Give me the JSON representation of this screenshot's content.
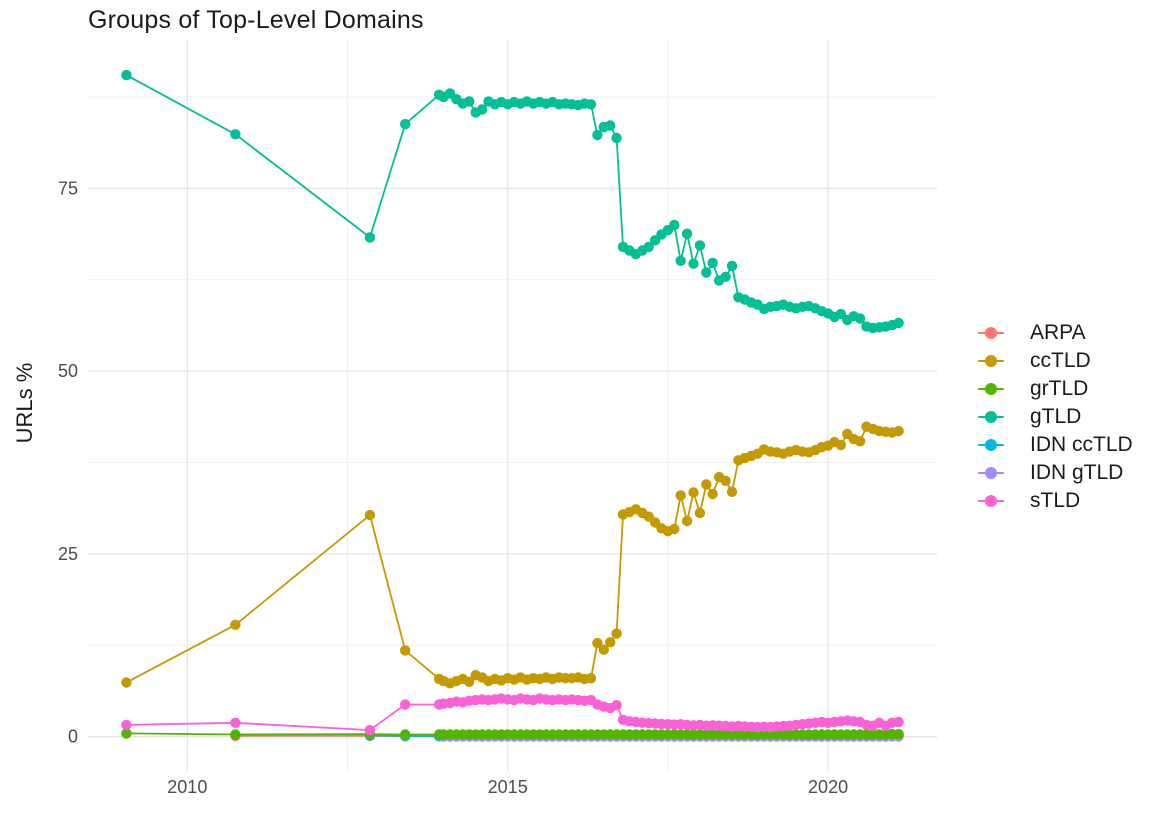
{
  "title": "Groups of Top-Level Domains",
  "axes": {
    "y_title": "URLs %",
    "x_ticks": [
      2010,
      2015,
      2020
    ],
    "x_minor": [
      2012.5,
      2017.5
    ],
    "y_ticks": [
      0,
      25,
      50,
      75
    ],
    "y_minor": [
      12.5,
      37.5,
      62.5,
      87.5
    ],
    "xlim": [
      2008.45,
      2021.7
    ],
    "ylim": [
      -4.7,
      95.3
    ]
  },
  "legend": {
    "position": "right"
  },
  "chart_data": {
    "type": "line",
    "title": "Groups of Top-Level Domains",
    "xlabel": "",
    "ylabel": "URLs %",
    "grid": true,
    "legend_position": "right",
    "xlim": [
      2008.45,
      2021.7
    ],
    "ylim": [
      -4.7,
      95.3
    ],
    "series": [
      {
        "name": "ARPA",
        "color": "#F8766D",
        "z": 1,
        "x": [
          2010.75,
          2012.85,
          2013.4,
          2013.93,
          2014.0,
          2014.1,
          2014.2,
          2014.3,
          2014.4,
          2014.5,
          2014.6,
          2014.7,
          2014.8,
          2014.9,
          2015.0,
          2015.1,
          2015.2,
          2015.3,
          2015.4,
          2015.5,
          2015.6,
          2015.7,
          2015.8,
          2015.9,
          2016.0,
          2016.1,
          2016.2,
          2016.3,
          2016.4,
          2016.5,
          2016.6,
          2016.7,
          2016.8,
          2016.9,
          2017.0,
          2017.1,
          2017.2,
          2017.3,
          2017.4,
          2017.5,
          2017.6,
          2017.7,
          2017.8,
          2017.9,
          2018.0,
          2018.1,
          2018.2,
          2018.3,
          2018.4,
          2018.5,
          2018.6,
          2018.7,
          2018.8,
          2018.9,
          2019.0,
          2019.1,
          2019.2,
          2019.3,
          2019.4,
          2019.5,
          2019.6,
          2019.7,
          2019.8,
          2019.9,
          2020.0,
          2020.1,
          2020.2,
          2020.3,
          2020.4,
          2020.5,
          2020.6,
          2020.7,
          2020.8,
          2020.9,
          2021.0,
          2021.1
        ],
        "y": [
          0.1,
          0.1,
          0.05,
          0.05,
          0.05,
          0.05,
          0.05,
          0.05,
          0.05,
          0.05,
          0.05,
          0.05,
          0.05,
          0.05,
          0.05,
          0.05,
          0.05,
          0.05,
          0.05,
          0.05,
          0.05,
          0.05,
          0.05,
          0.05,
          0.05,
          0.05,
          0.05,
          0.05,
          0.05,
          0.05,
          0.05,
          0.05,
          0.05,
          0.05,
          0.05,
          0.05,
          0.05,
          0.05,
          0.05,
          0.05,
          0.05,
          0.05,
          0.05,
          0.05,
          0.05,
          0.05,
          0.05,
          0.05,
          0.05,
          0.05,
          0.05,
          0.05,
          0.05,
          0.05,
          0.05,
          0.05,
          0.05,
          0.05,
          0.05,
          0.05,
          0.05,
          0.05,
          0.05,
          0.05,
          0.05,
          0.05,
          0.05,
          0.05,
          0.05,
          0.05,
          0.05,
          0.05,
          0.05,
          0.05,
          0.05,
          0.05
        ]
      },
      {
        "name": "ccTLD",
        "color": "#C49A00",
        "z": 4,
        "x": [
          2009.05,
          2010.75,
          2012.85,
          2013.4,
          2013.93,
          2014.0,
          2014.1,
          2014.2,
          2014.3,
          2014.4,
          2014.5,
          2014.6,
          2014.7,
          2014.8,
          2014.9,
          2015.0,
          2015.1,
          2015.2,
          2015.3,
          2015.4,
          2015.5,
          2015.6,
          2015.7,
          2015.8,
          2015.9,
          2016.0,
          2016.1,
          2016.2,
          2016.3,
          2016.4,
          2016.5,
          2016.6,
          2016.7,
          2016.8,
          2016.9,
          2017.0,
          2017.1,
          2017.2,
          2017.3,
          2017.4,
          2017.5,
          2017.6,
          2017.7,
          2017.8,
          2017.9,
          2018.0,
          2018.1,
          2018.2,
          2018.3,
          2018.4,
          2018.5,
          2018.6,
          2018.7,
          2018.8,
          2018.9,
          2019.0,
          2019.1,
          2019.2,
          2019.3,
          2019.4,
          2019.5,
          2019.6,
          2019.7,
          2019.8,
          2019.9,
          2020.0,
          2020.1,
          2020.2,
          2020.3,
          2020.4,
          2020.5,
          2020.6,
          2020.7,
          2020.8,
          2020.9,
          2021.0,
          2021.1
        ],
        "y": [
          7.4,
          15.3,
          30.3,
          11.8,
          7.9,
          7.6,
          7.3,
          7.6,
          7.9,
          7.5,
          8.4,
          8.1,
          7.6,
          7.9,
          7.7,
          8.0,
          7.8,
          8.1,
          7.8,
          8.0,
          7.9,
          8.1,
          7.9,
          8.1,
          8.0,
          8.0,
          8.1,
          7.9,
          8.0,
          12.8,
          11.9,
          12.9,
          14.1,
          30.4,
          30.7,
          31.1,
          30.6,
          30.1,
          29.3,
          28.5,
          28.1,
          28.4,
          33.0,
          29.5,
          33.4,
          30.6,
          34.5,
          33.2,
          35.5,
          35.0,
          33.5,
          37.8,
          38.1,
          38.4,
          38.7,
          39.3,
          39.0,
          38.9,
          38.7,
          39.0,
          39.2,
          39.0,
          38.9,
          39.2,
          39.6,
          39.8,
          40.3,
          39.9,
          41.4,
          40.7,
          40.4,
          42.4,
          42.1,
          41.8,
          41.7,
          41.6,
          41.8
        ]
      },
      {
        "name": "grTLD",
        "color": "#53B400",
        "z": 6,
        "x": [
          2009.05,
          2010.75,
          2012.85,
          2013.4,
          2013.93,
          2014.0,
          2014.1,
          2014.2,
          2014.3,
          2014.4,
          2014.5,
          2014.6,
          2014.7,
          2014.8,
          2014.9,
          2015.0,
          2015.1,
          2015.2,
          2015.3,
          2015.4,
          2015.5,
          2015.6,
          2015.7,
          2015.8,
          2015.9,
          2016.0,
          2016.1,
          2016.2,
          2016.3,
          2016.4,
          2016.5,
          2016.6,
          2016.7,
          2016.8,
          2016.9,
          2017.0,
          2017.1,
          2017.2,
          2017.3,
          2017.4,
          2017.5,
          2017.6,
          2017.7,
          2017.8,
          2017.9,
          2018.0,
          2018.1,
          2018.2,
          2018.3,
          2018.4,
          2018.5,
          2018.6,
          2018.7,
          2018.8,
          2018.9,
          2019.0,
          2019.1,
          2019.2,
          2019.3,
          2019.4,
          2019.5,
          2019.6,
          2019.7,
          2019.8,
          2019.9,
          2020.0,
          2020.1,
          2020.2,
          2020.3,
          2020.4,
          2020.5,
          2020.6,
          2020.7,
          2020.8,
          2020.9,
          2021.0,
          2021.1
        ],
        "y": [
          0.45,
          0.3,
          0.35,
          0.3,
          0.3,
          0.3,
          0.3,
          0.3,
          0.3,
          0.3,
          0.3,
          0.3,
          0.3,
          0.3,
          0.3,
          0.3,
          0.3,
          0.3,
          0.3,
          0.3,
          0.3,
          0.3,
          0.3,
          0.3,
          0.3,
          0.3,
          0.3,
          0.3,
          0.3,
          0.3,
          0.3,
          0.3,
          0.3,
          0.3,
          0.3,
          0.3,
          0.3,
          0.3,
          0.3,
          0.3,
          0.3,
          0.3,
          0.3,
          0.3,
          0.3,
          0.3,
          0.3,
          0.3,
          0.3,
          0.3,
          0.3,
          0.3,
          0.3,
          0.3,
          0.3,
          0.3,
          0.3,
          0.3,
          0.3,
          0.3,
          0.3,
          0.3,
          0.3,
          0.3,
          0.3,
          0.3,
          0.3,
          0.3,
          0.3,
          0.3,
          0.3,
          0.3,
          0.3,
          0.3,
          0.3,
          0.35,
          0.35
        ]
      },
      {
        "name": "gTLD",
        "color": "#00C094",
        "z": 5,
        "x": [
          2009.05,
          2010.75,
          2012.85,
          2013.4,
          2013.93,
          2014.0,
          2014.1,
          2014.2,
          2014.3,
          2014.4,
          2014.5,
          2014.6,
          2014.7,
          2014.8,
          2014.9,
          2015.0,
          2015.1,
          2015.2,
          2015.3,
          2015.4,
          2015.5,
          2015.6,
          2015.7,
          2015.8,
          2015.9,
          2016.0,
          2016.1,
          2016.2,
          2016.3,
          2016.4,
          2016.5,
          2016.6,
          2016.7,
          2016.8,
          2016.9,
          2017.0,
          2017.1,
          2017.2,
          2017.3,
          2017.4,
          2017.5,
          2017.6,
          2017.7,
          2017.8,
          2017.9,
          2018.0,
          2018.1,
          2018.2,
          2018.3,
          2018.4,
          2018.5,
          2018.6,
          2018.7,
          2018.8,
          2018.9,
          2019.0,
          2019.1,
          2019.2,
          2019.3,
          2019.4,
          2019.5,
          2019.6,
          2019.7,
          2019.8,
          2019.9,
          2020.0,
          2020.1,
          2020.2,
          2020.3,
          2020.4,
          2020.5,
          2020.6,
          2020.7,
          2020.8,
          2020.9,
          2021.0,
          2021.1
        ],
        "y": [
          90.5,
          82.4,
          68.3,
          83.8,
          87.8,
          87.5,
          88.0,
          87.2,
          86.6,
          86.9,
          85.4,
          85.8,
          86.9,
          86.5,
          86.8,
          86.5,
          86.8,
          86.6,
          86.9,
          86.6,
          86.8,
          86.6,
          86.8,
          86.5,
          86.6,
          86.5,
          86.4,
          86.6,
          86.5,
          82.3,
          83.4,
          83.6,
          81.9,
          67.0,
          66.5,
          66.0,
          66.5,
          67.0,
          67.9,
          68.7,
          69.3,
          70.0,
          65.1,
          68.8,
          64.7,
          67.2,
          63.5,
          64.8,
          62.4,
          62.9,
          64.4,
          60.1,
          59.8,
          59.4,
          59.1,
          58.5,
          58.8,
          58.9,
          59.1,
          58.8,
          58.6,
          58.8,
          58.9,
          58.6,
          58.2,
          57.9,
          57.4,
          57.8,
          57.0,
          57.5,
          57.2,
          56.1,
          55.9,
          56.0,
          56.1,
          56.3,
          56.6
        ]
      },
      {
        "name": "IDN ccTLD",
        "color": "#00B6EB",
        "z": 2,
        "x": [
          2012.85,
          2013.4,
          2013.93,
          2014.0,
          2014.1,
          2014.2,
          2014.3,
          2014.4,
          2014.5,
          2014.6,
          2014.7,
          2014.8,
          2014.9,
          2015.0,
          2015.1,
          2015.2,
          2015.3,
          2015.4,
          2015.5,
          2015.6,
          2015.7,
          2015.8,
          2015.9,
          2016.0,
          2016.1,
          2016.2,
          2016.3,
          2016.4,
          2016.5,
          2016.6,
          2016.7,
          2016.8,
          2016.9,
          2017.0,
          2017.1,
          2017.2,
          2017.3,
          2017.4,
          2017.5,
          2017.6,
          2017.7,
          2017.8,
          2017.9,
          2018.0,
          2018.1,
          2018.2,
          2018.3,
          2018.4,
          2018.5,
          2018.6,
          2018.7,
          2018.8,
          2018.9,
          2019.0,
          2019.1,
          2019.2,
          2019.3,
          2019.4,
          2019.5,
          2019.6,
          2019.7,
          2019.8,
          2019.9,
          2020.0,
          2020.1,
          2020.2,
          2020.3,
          2020.4,
          2020.5,
          2020.6,
          2020.7,
          2020.8,
          2020.9,
          2021.0,
          2021.1
        ],
        "y": [
          0.15,
          0.1,
          0.08,
          0.08,
          0.08,
          0.08,
          0.08,
          0.08,
          0.08,
          0.08,
          0.08,
          0.08,
          0.08,
          0.08,
          0.08,
          0.08,
          0.08,
          0.08,
          0.08,
          0.08,
          0.08,
          0.08,
          0.08,
          0.08,
          0.08,
          0.08,
          0.08,
          0.08,
          0.08,
          0.08,
          0.08,
          0.08,
          0.08,
          0.08,
          0.08,
          0.08,
          0.08,
          0.08,
          0.08,
          0.08,
          0.08,
          0.08,
          0.08,
          0.08,
          0.08,
          0.08,
          0.08,
          0.08,
          0.08,
          0.08,
          0.08,
          0.08,
          0.08,
          0.08,
          0.08,
          0.08,
          0.08,
          0.08,
          0.08,
          0.08,
          0.08,
          0.08,
          0.08,
          0.08,
          0.08,
          0.08,
          0.08,
          0.08,
          0.08,
          0.08,
          0.08,
          0.08,
          0.08,
          0.08,
          0.08
        ]
      },
      {
        "name": "IDN gTLD",
        "color": "#A58AFF",
        "z": 3,
        "x": [
          2014.0,
          2014.1,
          2014.2,
          2014.3,
          2014.4,
          2014.5,
          2014.6,
          2014.7,
          2014.8,
          2014.9,
          2015.0,
          2015.1,
          2015.2,
          2015.3,
          2015.4,
          2015.5,
          2015.6,
          2015.7,
          2015.8,
          2015.9,
          2016.0,
          2016.1,
          2016.2,
          2016.3,
          2016.4,
          2016.5,
          2016.6,
          2016.7,
          2016.8,
          2016.9,
          2017.0,
          2017.1,
          2017.2,
          2017.3,
          2017.4,
          2017.5,
          2017.6,
          2017.7,
          2017.8,
          2017.9,
          2018.0,
          2018.1,
          2018.2,
          2018.3,
          2018.4,
          2018.5,
          2018.6,
          2018.7,
          2018.8,
          2018.9,
          2019.0,
          2019.1,
          2019.2,
          2019.3,
          2019.4,
          2019.5,
          2019.6,
          2019.7,
          2019.8,
          2019.9,
          2020.0,
          2020.1,
          2020.2,
          2020.3,
          2020.4,
          2020.5,
          2020.6,
          2020.7,
          2020.8,
          2020.9,
          2021.0,
          2021.1
        ],
        "y": [
          0.03,
          0.03,
          0.03,
          0.03,
          0.03,
          0.03,
          0.03,
          0.03,
          0.03,
          0.03,
          0.03,
          0.03,
          0.03,
          0.03,
          0.03,
          0.03,
          0.03,
          0.03,
          0.03,
          0.03,
          0.03,
          0.03,
          0.03,
          0.03,
          0.03,
          0.03,
          0.03,
          0.03,
          0.03,
          0.03,
          0.03,
          0.03,
          0.03,
          0.03,
          0.03,
          0.03,
          0.03,
          0.03,
          0.03,
          0.03,
          0.03,
          0.03,
          0.03,
          0.03,
          0.03,
          0.03,
          0.03,
          0.03,
          0.03,
          0.03,
          0.03,
          0.03,
          0.03,
          0.03,
          0.03,
          0.03,
          0.03,
          0.03,
          0.03,
          0.03,
          0.03,
          0.03,
          0.03,
          0.03,
          0.03,
          0.03,
          0.03,
          0.03,
          0.03,
          0.03,
          0.03,
          0.03
        ]
      },
      {
        "name": "sTLD",
        "color": "#FB61D7",
        "z": 7,
        "x": [
          2009.05,
          2010.75,
          2012.85,
          2013.4,
          2013.93,
          2014.0,
          2014.1,
          2014.2,
          2014.3,
          2014.4,
          2014.5,
          2014.6,
          2014.7,
          2014.8,
          2014.9,
          2015.0,
          2015.1,
          2015.2,
          2015.3,
          2015.4,
          2015.5,
          2015.6,
          2015.7,
          2015.8,
          2015.9,
          2016.0,
          2016.1,
          2016.2,
          2016.3,
          2016.4,
          2016.5,
          2016.6,
          2016.7,
          2016.8,
          2016.9,
          2017.0,
          2017.1,
          2017.2,
          2017.3,
          2017.4,
          2017.5,
          2017.6,
          2017.7,
          2017.8,
          2017.9,
          2018.0,
          2018.1,
          2018.2,
          2018.3,
          2018.4,
          2018.5,
          2018.6,
          2018.7,
          2018.8,
          2018.9,
          2019.0,
          2019.1,
          2019.2,
          2019.3,
          2019.4,
          2019.5,
          2019.6,
          2019.7,
          2019.8,
          2019.9,
          2020.0,
          2020.1,
          2020.2,
          2020.3,
          2020.4,
          2020.5,
          2020.6,
          2020.7,
          2020.8,
          2020.9,
          2021.0,
          2021.1
        ],
        "y": [
          1.6,
          1.9,
          0.9,
          4.4,
          4.4,
          4.5,
          4.6,
          4.8,
          4.7,
          4.9,
          5.0,
          5.1,
          5.0,
          5.1,
          5.2,
          5.1,
          5.0,
          5.2,
          5.1,
          5.0,
          5.2,
          5.1,
          5.0,
          5.1,
          5.0,
          5.1,
          5.0,
          4.9,
          5.0,
          4.4,
          4.1,
          3.9,
          4.3,
          2.3,
          2.1,
          2.0,
          1.9,
          1.85,
          1.8,
          1.75,
          1.7,
          1.65,
          1.7,
          1.6,
          1.55,
          1.6,
          1.5,
          1.55,
          1.5,
          1.45,
          1.4,
          1.45,
          1.4,
          1.35,
          1.3,
          1.35,
          1.3,
          1.4,
          1.45,
          1.5,
          1.6,
          1.7,
          1.8,
          1.9,
          2.0,
          1.9,
          2.0,
          2.1,
          2.2,
          2.1,
          2.0,
          1.6,
          1.5,
          1.9,
          1.5,
          1.9,
          2.0
        ]
      }
    ]
  },
  "style": {
    "grid_major_color": "#e4e4e4",
    "grid_minor_color": "#f1f1f1",
    "tick_label_color": "#4d4d4d",
    "text_color": "#1b1b1b"
  }
}
